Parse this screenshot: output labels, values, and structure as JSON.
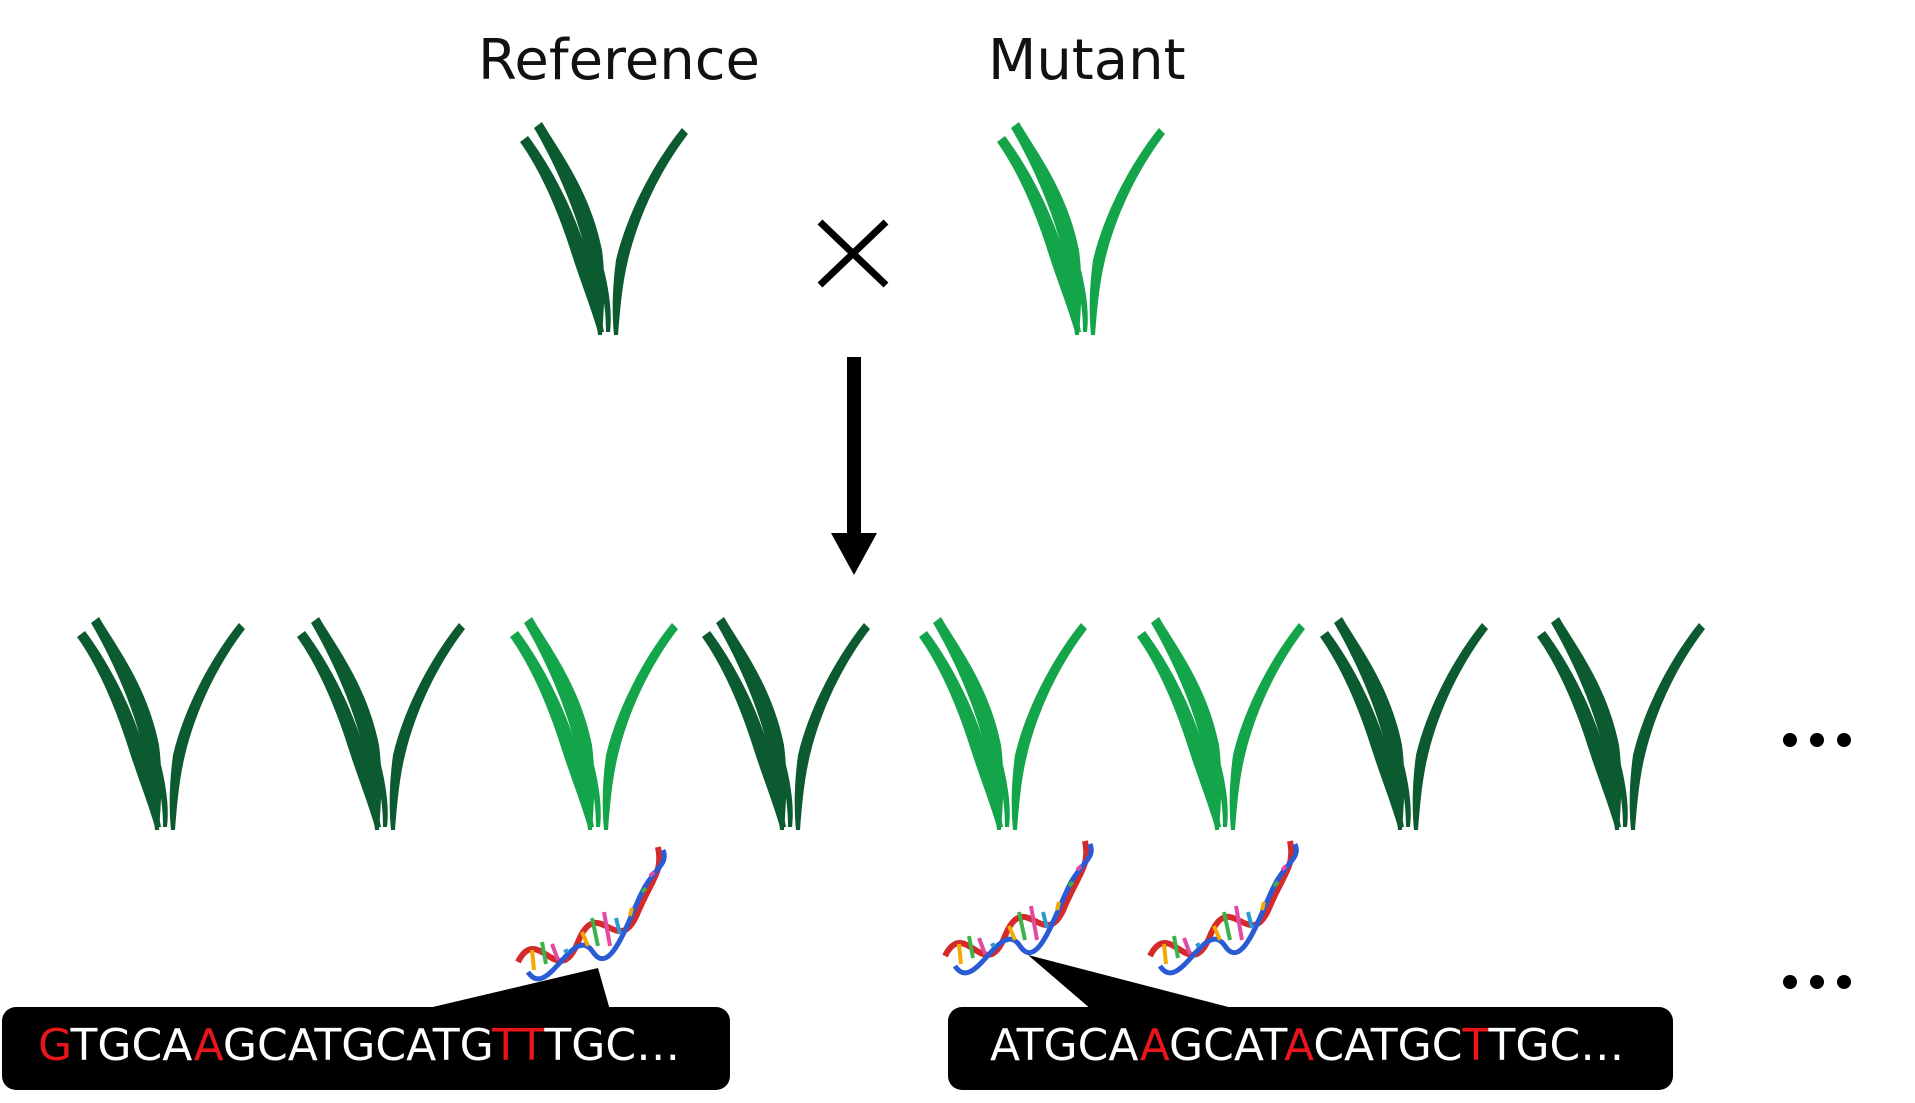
{
  "labels": {
    "reference": "Reference",
    "mutant": "Mutant",
    "cross": "×",
    "ellipsis_plants": "...",
    "ellipsis_dna": "..."
  },
  "colors": {
    "dark_green": "#0b5a30",
    "light_green": "#14a44a",
    "mutation_red": "#e8151b",
    "callout_bg": "#000000"
  },
  "parents": [
    {
      "role": "reference",
      "color": "dark"
    },
    {
      "role": "mutant",
      "color": "light"
    }
  ],
  "offspring": [
    "dark",
    "dark",
    "light",
    "dark",
    "light",
    "light",
    "dark",
    "dark"
  ],
  "dna_on_offspring": [
    3,
    5,
    6
  ],
  "sequences": [
    {
      "name": "left",
      "segments": [
        {
          "text": "G",
          "mut": true
        },
        {
          "text": "TGCA",
          "mut": false
        },
        {
          "text": "A",
          "mut": true
        },
        {
          "text": "GCATGCATG",
          "mut": false
        },
        {
          "text": "TT",
          "mut": true
        },
        {
          "text": "TGC…",
          "mut": false
        }
      ]
    },
    {
      "name": "right",
      "segments": [
        {
          "text": "ATGCA",
          "mut": false
        },
        {
          "text": "A",
          "mut": true
        },
        {
          "text": "GCAT",
          "mut": false
        },
        {
          "text": "A",
          "mut": true
        },
        {
          "text": "CATGC",
          "mut": false
        },
        {
          "text": "T",
          "mut": true
        },
        {
          "text": "TGC…",
          "mut": false
        }
      ]
    }
  ]
}
